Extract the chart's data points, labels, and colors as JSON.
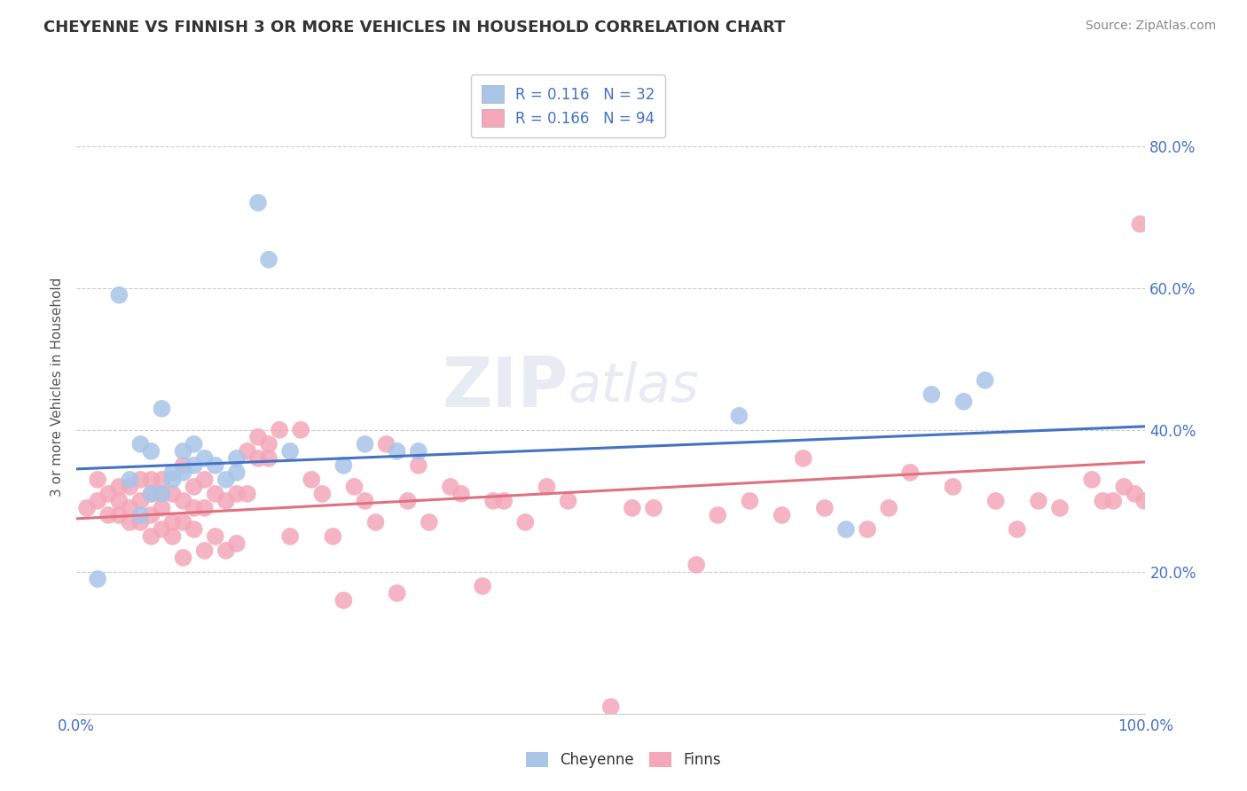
{
  "title": "CHEYENNE VS FINNISH 3 OR MORE VEHICLES IN HOUSEHOLD CORRELATION CHART",
  "source": "Source: ZipAtlas.com",
  "ylabel": "3 or more Vehicles in Household",
  "xlim": [
    0,
    1.0
  ],
  "ylim": [
    0.0,
    0.92
  ],
  "yticks": [
    0.2,
    0.4,
    0.6,
    0.8
  ],
  "ytick_labels": [
    "20.0%",
    "40.0%",
    "60.0%",
    "80.0%"
  ],
  "xticks": [
    0.0,
    0.25,
    0.5,
    0.75,
    1.0
  ],
  "xtick_labels": [
    "0.0%",
    "",
    "",
    "",
    "100.0%"
  ],
  "legend_r1": "R = 0.116",
  "legend_n1": "N = 32",
  "legend_r2": "R = 0.166",
  "legend_n2": "N = 94",
  "cheyenne_color": "#a8c5e8",
  "finns_color": "#f4a7b9",
  "line_cheyenne_color": "#4472c4",
  "line_finns_color": "#e07080",
  "background_color": "#ffffff",
  "watermark_text": "ZIPatlas",
  "cheyenne_x": [
    0.02,
    0.04,
    0.05,
    0.06,
    0.06,
    0.07,
    0.07,
    0.08,
    0.08,
    0.09,
    0.09,
    0.1,
    0.1,
    0.11,
    0.11,
    0.12,
    0.13,
    0.14,
    0.15,
    0.15,
    0.17,
    0.18,
    0.2,
    0.25,
    0.27,
    0.3,
    0.32,
    0.62,
    0.72,
    0.8,
    0.83,
    0.85
  ],
  "cheyenne_y": [
    0.19,
    0.59,
    0.33,
    0.28,
    0.38,
    0.31,
    0.37,
    0.31,
    0.43,
    0.34,
    0.33,
    0.34,
    0.37,
    0.35,
    0.38,
    0.36,
    0.35,
    0.33,
    0.36,
    0.34,
    0.72,
    0.64,
    0.37,
    0.35,
    0.38,
    0.37,
    0.37,
    0.42,
    0.26,
    0.45,
    0.44,
    0.47
  ],
  "finns_x": [
    0.01,
    0.02,
    0.02,
    0.03,
    0.03,
    0.04,
    0.04,
    0.04,
    0.05,
    0.05,
    0.05,
    0.06,
    0.06,
    0.06,
    0.07,
    0.07,
    0.07,
    0.07,
    0.08,
    0.08,
    0.08,
    0.08,
    0.09,
    0.09,
    0.09,
    0.1,
    0.1,
    0.1,
    0.1,
    0.11,
    0.11,
    0.11,
    0.12,
    0.12,
    0.12,
    0.13,
    0.13,
    0.14,
    0.14,
    0.15,
    0.15,
    0.16,
    0.16,
    0.17,
    0.17,
    0.18,
    0.18,
    0.19,
    0.2,
    0.21,
    0.22,
    0.23,
    0.24,
    0.25,
    0.26,
    0.27,
    0.28,
    0.29,
    0.3,
    0.31,
    0.32,
    0.33,
    0.35,
    0.36,
    0.38,
    0.39,
    0.4,
    0.42,
    0.44,
    0.46,
    0.5,
    0.52,
    0.54,
    0.58,
    0.6,
    0.63,
    0.66,
    0.68,
    0.7,
    0.74,
    0.76,
    0.78,
    0.82,
    0.86,
    0.88,
    0.9,
    0.92,
    0.95,
    0.96,
    0.97,
    0.98,
    0.99,
    0.995,
    0.999
  ],
  "finns_y": [
    0.29,
    0.3,
    0.33,
    0.28,
    0.31,
    0.28,
    0.3,
    0.32,
    0.27,
    0.29,
    0.32,
    0.27,
    0.3,
    0.33,
    0.25,
    0.28,
    0.31,
    0.33,
    0.26,
    0.29,
    0.31,
    0.33,
    0.25,
    0.27,
    0.31,
    0.22,
    0.27,
    0.3,
    0.35,
    0.26,
    0.29,
    0.32,
    0.23,
    0.29,
    0.33,
    0.25,
    0.31,
    0.23,
    0.3,
    0.24,
    0.31,
    0.31,
    0.37,
    0.36,
    0.39,
    0.36,
    0.38,
    0.4,
    0.25,
    0.4,
    0.33,
    0.31,
    0.25,
    0.16,
    0.32,
    0.3,
    0.27,
    0.38,
    0.17,
    0.3,
    0.35,
    0.27,
    0.32,
    0.31,
    0.18,
    0.3,
    0.3,
    0.27,
    0.32,
    0.3,
    0.01,
    0.29,
    0.29,
    0.21,
    0.28,
    0.3,
    0.28,
    0.36,
    0.29,
    0.26,
    0.29,
    0.34,
    0.32,
    0.3,
    0.26,
    0.3,
    0.29,
    0.33,
    0.3,
    0.3,
    0.32,
    0.31,
    0.69,
    0.3
  ]
}
